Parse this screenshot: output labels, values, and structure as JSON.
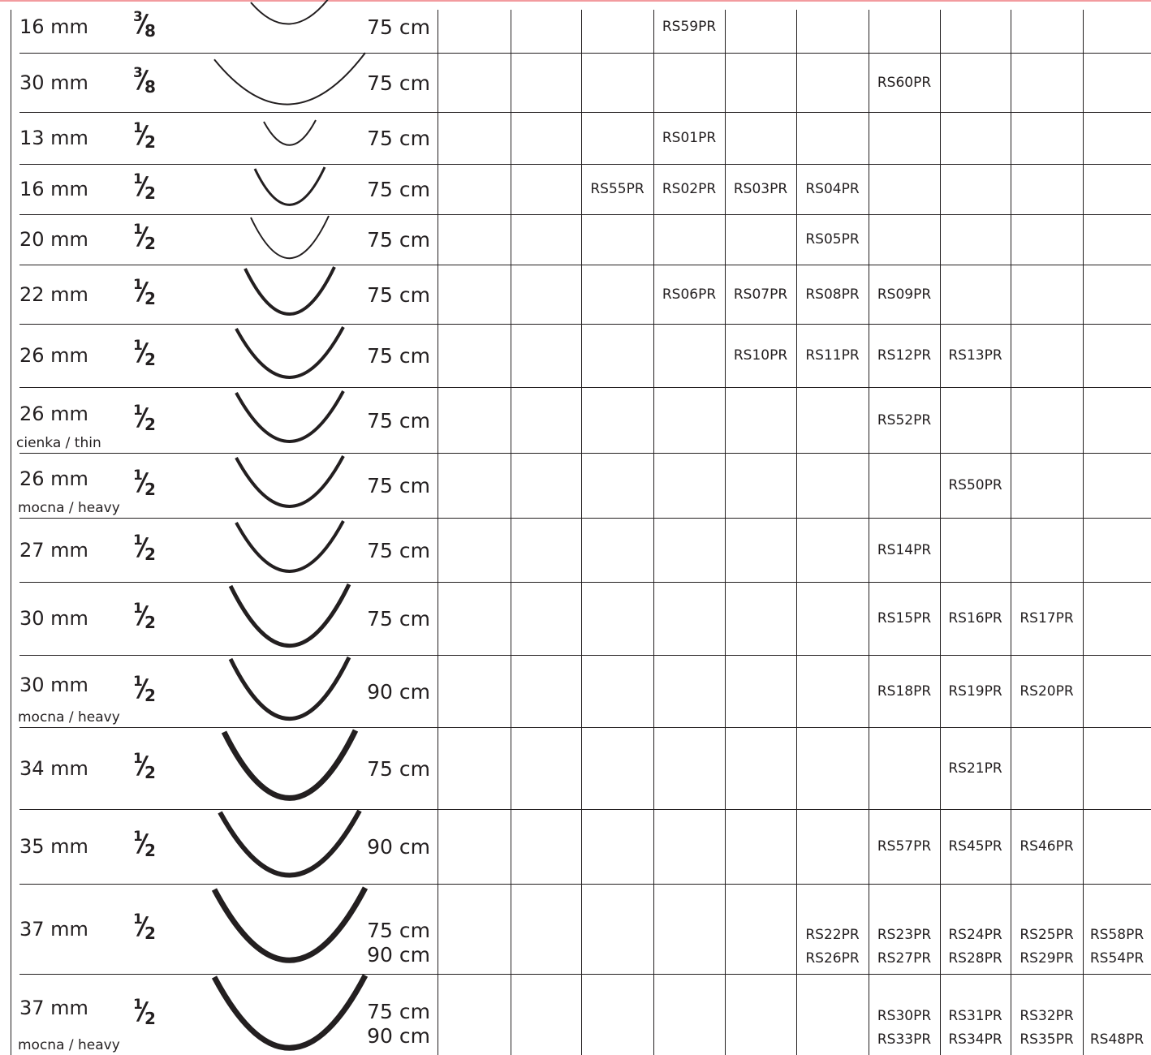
{
  "colors": {
    "ink": "#231f20",
    "top_rule": "#f29b9f",
    "background": "#ffffff"
  },
  "rows": [
    {
      "size": "16 mm",
      "variant": "",
      "fraction": {
        "num": "3",
        "den": "8"
      },
      "curve": 0.375,
      "lengths": [
        "75 cm"
      ],
      "codes": [
        {
          "col": 3,
          "values": [
            "RS59PR"
          ]
        }
      ]
    },
    {
      "size": "30 mm",
      "variant": "",
      "fraction": {
        "num": "3",
        "den": "8"
      },
      "curve": 0.375,
      "lengths": [
        "75 cm"
      ],
      "codes": [
        {
          "col": 6,
          "values": [
            "RS60PR"
          ]
        }
      ]
    },
    {
      "size": "13 mm",
      "variant": "",
      "fraction": {
        "num": "1",
        "den": "2"
      },
      "curve": 0.5,
      "lengths": [
        "75 cm"
      ],
      "codes": [
        {
          "col": 3,
          "values": [
            "RS01PR"
          ]
        }
      ]
    },
    {
      "size": "16 mm",
      "variant": "",
      "fraction": {
        "num": "1",
        "den": "2"
      },
      "curve": 0.5,
      "lengths": [
        "75 cm"
      ],
      "codes": [
        {
          "col": 2,
          "values": [
            "RS55PR"
          ]
        },
        {
          "col": 3,
          "values": [
            "RS02PR"
          ]
        },
        {
          "col": 4,
          "values": [
            "RS03PR"
          ]
        },
        {
          "col": 5,
          "values": [
            "RS04PR"
          ]
        }
      ]
    },
    {
      "size": "20 mm",
      "variant": "",
      "fraction": {
        "num": "1",
        "den": "2"
      },
      "curve": 0.5,
      "lengths": [
        "75 cm"
      ],
      "codes": [
        {
          "col": 5,
          "values": [
            "RS05PR"
          ]
        }
      ]
    },
    {
      "size": "22 mm",
      "variant": "",
      "fraction": {
        "num": "1",
        "den": "2"
      },
      "curve": 0.5,
      "lengths": [
        "75 cm"
      ],
      "codes": [
        {
          "col": 3,
          "values": [
            "RS06PR"
          ]
        },
        {
          "col": 4,
          "values": [
            "RS07PR"
          ]
        },
        {
          "col": 5,
          "values": [
            "RS08PR"
          ]
        },
        {
          "col": 6,
          "values": [
            "RS09PR"
          ]
        }
      ]
    },
    {
      "size": "26 mm",
      "variant": "",
      "fraction": {
        "num": "1",
        "den": "2"
      },
      "curve": 0.5,
      "lengths": [
        "75 cm"
      ],
      "codes": [
        {
          "col": 4,
          "values": [
            "RS10PR"
          ]
        },
        {
          "col": 5,
          "values": [
            "RS11PR"
          ]
        },
        {
          "col": 6,
          "values": [
            "RS12PR"
          ]
        },
        {
          "col": 7,
          "values": [
            "RS13PR"
          ]
        }
      ]
    },
    {
      "size": "26 mm",
      "variant": "cienka / thin",
      "fraction": {
        "num": "1",
        "den": "2"
      },
      "curve": 0.5,
      "lengths": [
        "75 cm"
      ],
      "codes": [
        {
          "col": 6,
          "values": [
            "RS52PR"
          ]
        }
      ]
    },
    {
      "size": "26 mm",
      "variant": "mocna / heavy",
      "fraction": {
        "num": "1",
        "den": "2"
      },
      "curve": 0.5,
      "lengths": [
        "75 cm"
      ],
      "codes": [
        {
          "col": 7,
          "values": [
            "RS50PR"
          ]
        }
      ]
    },
    {
      "size": "27 mm",
      "variant": "",
      "fraction": {
        "num": "1",
        "den": "2"
      },
      "curve": 0.5,
      "lengths": [
        "75 cm"
      ],
      "codes": [
        {
          "col": 6,
          "values": [
            "RS14PR"
          ]
        }
      ]
    },
    {
      "size": "30 mm",
      "variant": "",
      "fraction": {
        "num": "1",
        "den": "2"
      },
      "curve": 0.5,
      "lengths": [
        "75 cm"
      ],
      "codes": [
        {
          "col": 6,
          "values": [
            "RS15PR"
          ]
        },
        {
          "col": 7,
          "values": [
            "RS16PR"
          ]
        },
        {
          "col": 8,
          "values": [
            "RS17PR"
          ]
        }
      ]
    },
    {
      "size": "30 mm",
      "variant": "mocna / heavy",
      "fraction": {
        "num": "1",
        "den": "2"
      },
      "curve": 0.5,
      "lengths": [
        "90 cm"
      ],
      "codes": [
        {
          "col": 6,
          "values": [
            "RS18PR"
          ]
        },
        {
          "col": 7,
          "values": [
            "RS19PR"
          ]
        },
        {
          "col": 8,
          "values": [
            "RS20PR"
          ]
        }
      ]
    },
    {
      "size": "34 mm",
      "variant": "",
      "fraction": {
        "num": "1",
        "den": "2"
      },
      "curve": 0.5,
      "lengths": [
        "75 cm"
      ],
      "codes": [
        {
          "col": 7,
          "values": [
            "RS21PR"
          ]
        }
      ]
    },
    {
      "size": "35 mm",
      "variant": "",
      "fraction": {
        "num": "1",
        "den": "2"
      },
      "curve": 0.5,
      "lengths": [
        "90 cm"
      ],
      "codes": [
        {
          "col": 6,
          "values": [
            "RS57PR"
          ]
        },
        {
          "col": 7,
          "values": [
            "RS45PR"
          ]
        },
        {
          "col": 8,
          "values": [
            "RS46PR"
          ]
        }
      ]
    },
    {
      "size": "37 mm",
      "variant": "",
      "fraction": {
        "num": "1",
        "den": "2"
      },
      "curve": 0.5,
      "lengths": [
        "75 cm",
        "90 cm"
      ],
      "codes": [
        {
          "col": 5,
          "values": [
            "RS22PR",
            "RS26PR"
          ]
        },
        {
          "col": 6,
          "values": [
            "RS23PR",
            "RS27PR"
          ]
        },
        {
          "col": 7,
          "values": [
            "RS24PR",
            "RS28PR"
          ]
        },
        {
          "col": 8,
          "values": [
            "RS25PR",
            "RS29PR"
          ]
        },
        {
          "col": 9,
          "values": [
            "RS58PR",
            "RS54PR"
          ]
        }
      ]
    },
    {
      "size": "37 mm",
      "variant": "mocna / heavy",
      "fraction": {
        "num": "1",
        "den": "2"
      },
      "curve": 0.5,
      "lengths": [
        "75 cm",
        "90 cm"
      ],
      "codes": [
        {
          "col": 6,
          "values": [
            "RS30PR",
            "RS33PR"
          ]
        },
        {
          "col": 7,
          "values": [
            "RS31PR",
            "RS34PR"
          ]
        },
        {
          "col": 8,
          "values": [
            "RS32PR",
            "RS35PR"
          ]
        },
        {
          "col": 9,
          "values": [
            "",
            "RS48PR"
          ]
        }
      ]
    }
  ]
}
